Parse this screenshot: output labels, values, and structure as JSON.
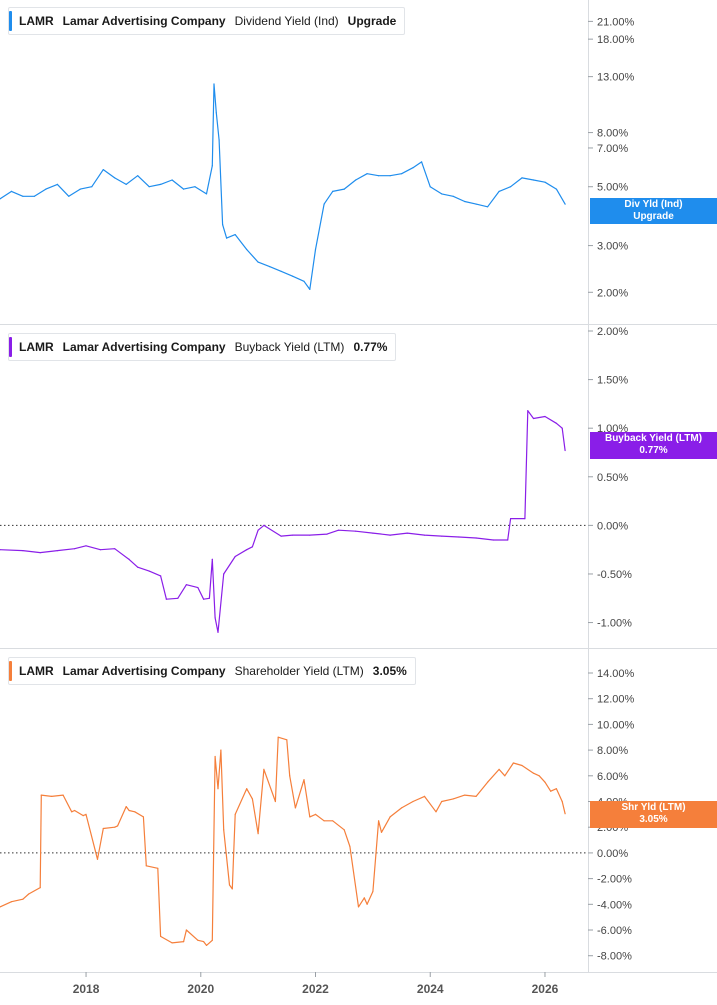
{
  "colors": {
    "dividend": "#1f8ded",
    "buyback": "#8a1ee8",
    "shareholder": "#f57f3b",
    "grid": "#d9dce0"
  },
  "chart_data": [
    {
      "type": "line",
      "ticker": "LAMR",
      "company": "Lamar Advertising Company",
      "metric": "Dividend Yield (Ind)",
      "last_value": "Upgrade",
      "tag_label": "Div Yld (Ind)",
      "tag_value": "Upgrade",
      "y_scale": "log",
      "ylim": [
        1.6,
        24
      ],
      "y_ticks": [
        21,
        18,
        13,
        8,
        7,
        5,
        3,
        2
      ],
      "y_tick_labels": [
        "21.00%",
        "18.00%",
        "13.00%",
        "8.00%",
        "7.00%",
        "5.00%",
        "3.00%",
        "2.00%"
      ],
      "zero_line": false,
      "x": [
        2016.5,
        2016.7,
        2016.9,
        2017.1,
        2017.3,
        2017.5,
        2017.7,
        2017.9,
        2018.1,
        2018.3,
        2018.5,
        2018.7,
        2018.9,
        2019.1,
        2019.3,
        2019.5,
        2019.7,
        2019.9,
        2020.1,
        2020.2,
        2020.23,
        2020.27,
        2020.32,
        2020.38,
        2020.45,
        2020.6,
        2020.8,
        2021.0,
        2021.2,
        2021.4,
        2021.6,
        2021.8,
        2021.9,
        2022.0,
        2022.15,
        2022.3,
        2022.5,
        2022.7,
        2022.9,
        2023.1,
        2023.3,
        2023.5,
        2023.7,
        2023.85,
        2024.0,
        2024.2,
        2024.4,
        2024.6,
        2024.8,
        2025.0,
        2025.2,
        2025.4,
        2025.6,
        2025.8,
        2026.0,
        2026.2,
        2026.35
      ],
      "values": [
        4.5,
        4.8,
        4.6,
        4.6,
        4.9,
        5.1,
        4.6,
        4.9,
        5.0,
        5.8,
        5.4,
        5.1,
        5.5,
        5.0,
        5.1,
        5.3,
        4.9,
        5.0,
        4.7,
        6.0,
        12.2,
        9.5,
        7.5,
        3.6,
        3.2,
        3.3,
        2.9,
        2.6,
        2.5,
        2.4,
        2.3,
        2.2,
        2.05,
        2.9,
        4.3,
        4.8,
        4.9,
        5.3,
        5.6,
        5.5,
        5.5,
        5.6,
        5.9,
        6.2,
        5.0,
        4.7,
        4.6,
        4.4,
        4.3,
        4.2,
        4.8,
        5.0,
        5.4,
        5.3,
        5.2,
        4.9,
        4.3
      ]
    },
    {
      "type": "line",
      "ticker": "LAMR",
      "company": "Lamar Advertising Company",
      "metric": "Buyback Yield (LTM)",
      "last_value": "0.77%",
      "tag_label": "Buyback Yield (LTM)",
      "tag_value": "0.77%",
      "y_scale": "linear",
      "ylim": [
        -1.2,
        2.0
      ],
      "y_ticks": [
        2.0,
        1.5,
        1.0,
        0.5,
        0.0,
        -0.5,
        -1.0
      ],
      "y_tick_labels": [
        "2.00%",
        "1.50%",
        "1.00%",
        "0.50%",
        "0.00%",
        "-0.50%",
        "-1.00%"
      ],
      "zero_line": true,
      "x": [
        2016.5,
        2016.9,
        2017.2,
        2017.5,
        2017.8,
        2018.0,
        2018.25,
        2018.5,
        2018.75,
        2018.9,
        2019.1,
        2019.3,
        2019.4,
        2019.6,
        2019.75,
        2019.95,
        2020.05,
        2020.15,
        2020.2,
        2020.25,
        2020.3,
        2020.4,
        2020.6,
        2020.8,
        2020.9,
        2021.0,
        2021.1,
        2021.4,
        2021.6,
        2021.9,
        2022.2,
        2022.4,
        2022.7,
        2023.0,
        2023.3,
        2023.6,
        2023.9,
        2024.2,
        2024.5,
        2024.8,
        2025.1,
        2025.35,
        2025.4,
        2025.65,
        2025.7,
        2025.8,
        2026.0,
        2026.2,
        2026.3,
        2026.35
      ],
      "values": [
        -0.25,
        -0.26,
        -0.28,
        -0.26,
        -0.24,
        -0.21,
        -0.25,
        -0.24,
        -0.35,
        -0.43,
        -0.47,
        -0.52,
        -0.76,
        -0.75,
        -0.61,
        -0.64,
        -0.76,
        -0.75,
        -0.35,
        -0.95,
        -1.1,
        -0.5,
        -0.32,
        -0.25,
        -0.22,
        -0.05,
        0.0,
        -0.11,
        -0.1,
        -0.1,
        -0.09,
        -0.05,
        -0.06,
        -0.08,
        -0.1,
        -0.08,
        -0.1,
        -0.11,
        -0.12,
        -0.13,
        -0.15,
        -0.15,
        0.07,
        0.07,
        1.18,
        1.1,
        1.12,
        1.05,
        1.0,
        0.77
      ]
    },
    {
      "type": "line",
      "ticker": "LAMR",
      "company": "Lamar Advertising Company",
      "metric": "Shareholder Yield (LTM)",
      "last_value": "3.05%",
      "tag_label": "Shr Yld (LTM)",
      "tag_value": "3.05%",
      "y_scale": "linear",
      "ylim": [
        -8.8,
        15.4
      ],
      "y_ticks": [
        14,
        12,
        10,
        8,
        6,
        4,
        2,
        0,
        -2,
        -4,
        -6,
        -8
      ],
      "y_tick_labels": [
        "14.00%",
        "12.00%",
        "10.00%",
        "8.00%",
        "6.00%",
        "4.00%",
        "2.00%",
        "0.00%",
        "-2.00%",
        "-4.00%",
        "-6.00%",
        "-8.00%"
      ],
      "zero_line": true,
      "x": [
        2016.5,
        2016.7,
        2016.9,
        2017.0,
        2017.2,
        2017.22,
        2017.4,
        2017.6,
        2017.75,
        2017.8,
        2017.95,
        2018.0,
        2018.2,
        2018.3,
        2018.5,
        2018.55,
        2018.7,
        2018.75,
        2018.85,
        2019.0,
        2019.05,
        2019.25,
        2019.3,
        2019.5,
        2019.7,
        2019.75,
        2019.95,
        2020.05,
        2020.1,
        2020.2,
        2020.25,
        2020.3,
        2020.35,
        2020.4,
        2020.5,
        2020.55,
        2020.6,
        2020.8,
        2020.9,
        2021.0,
        2021.1,
        2021.3,
        2021.35,
        2021.5,
        2021.55,
        2021.65,
        2021.8,
        2021.9,
        2022.0,
        2022.15,
        2022.3,
        2022.5,
        2022.6,
        2022.75,
        2022.85,
        2022.9,
        2023.0,
        2023.1,
        2023.15,
        2023.2,
        2023.3,
        2023.5,
        2023.7,
        2023.9,
        2024.1,
        2024.2,
        2024.4,
        2024.6,
        2024.8,
        2025.0,
        2025.2,
        2025.3,
        2025.45,
        2025.6,
        2025.8,
        2025.9,
        2026.0,
        2026.1,
        2026.2,
        2026.3,
        2026.35
      ],
      "values": [
        -4.2,
        -3.8,
        -3.6,
        -3.2,
        -2.7,
        4.5,
        4.4,
        4.5,
        3.2,
        3.3,
        2.9,
        3.0,
        -0.5,
        1.9,
        2.0,
        2.1,
        3.6,
        3.3,
        3.2,
        2.8,
        -1.0,
        -1.2,
        -6.5,
        -7.0,
        -6.9,
        -6.0,
        -6.8,
        -6.9,
        -7.2,
        -6.8,
        7.5,
        5.0,
        8.0,
        1.8,
        -2.5,
        -2.8,
        3.0,
        5.0,
        4.2,
        1.5,
        6.5,
        4.0,
        9.0,
        8.8,
        6.0,
        3.5,
        5.7,
        2.8,
        3.0,
        2.5,
        2.5,
        1.8,
        0.5,
        -4.2,
        -3.5,
        -4.0,
        -3.0,
        2.5,
        1.6,
        2.0,
        2.8,
        3.5,
        4.0,
        4.4,
        3.2,
        4.0,
        4.2,
        4.5,
        4.4,
        5.5,
        6.5,
        6.0,
        7.0,
        6.8,
        6.2,
        6.0,
        5.5,
        4.8,
        5.0,
        4.0,
        3.05
      ]
    }
  ],
  "x_axis": {
    "min": 2016.5,
    "max": 2026.75,
    "ticks": [
      2018,
      2020,
      2022,
      2024,
      2026
    ],
    "tick_labels": [
      "2018",
      "2020",
      "2022",
      "2024",
      "2026"
    ]
  }
}
